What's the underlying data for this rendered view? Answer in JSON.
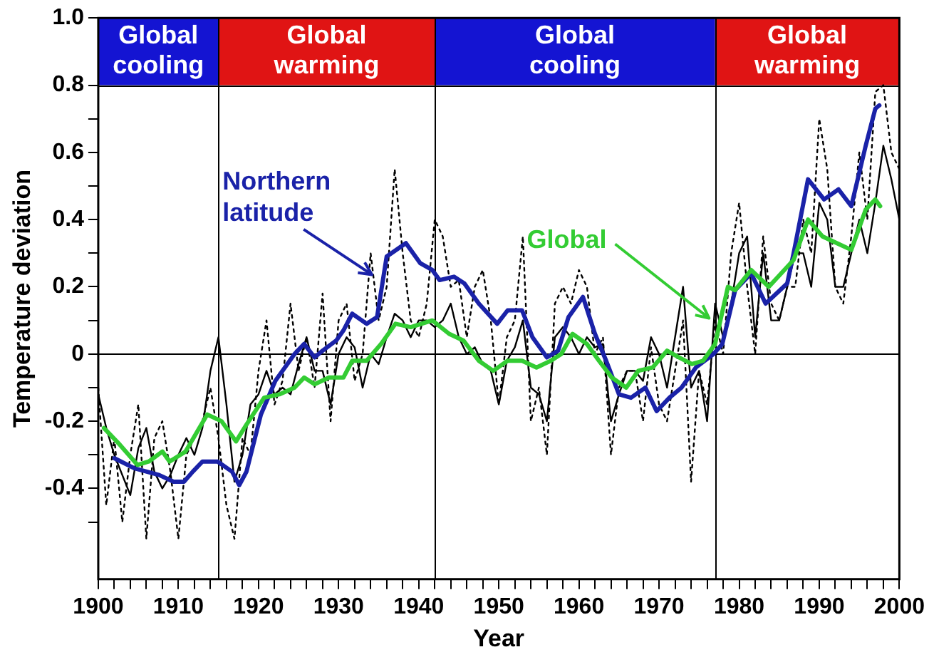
{
  "chart_data": {
    "type": "line",
    "xlabel": "Year",
    "ylabel": "Temperature deviation",
    "xlim": [
      1900,
      2000
    ],
    "ylim": [
      -0.67,
      1.0
    ],
    "xticks": [
      1900,
      {
        "value": 1902,
        "label": null
      },
      {
        "value": 1904,
        "label": null
      },
      {
        "value": 1906,
        "label": null
      },
      {
        "value": 1908,
        "label": null
      },
      1910,
      {
        "value": 1912,
        "label": null
      },
      {
        "value": 1914,
        "label": null
      },
      {
        "value": 1916,
        "label": null
      },
      {
        "value": 1918,
        "label": null
      },
      1920,
      {
        "value": 1922,
        "label": null
      },
      {
        "value": 1924,
        "label": null
      },
      {
        "value": 1926,
        "label": null
      },
      {
        "value": 1928,
        "label": null
      },
      1930,
      {
        "value": 1932,
        "label": null
      },
      {
        "value": 1934,
        "label": null
      },
      {
        "value": 1936,
        "label": null
      },
      {
        "value": 1938,
        "label": null
      },
      1940,
      {
        "value": 1942,
        "label": null
      },
      {
        "value": 1944,
        "label": null
      },
      {
        "value": 1946,
        "label": null
      },
      {
        "value": 1948,
        "label": null
      },
      1950,
      {
        "value": 1952,
        "label": null
      },
      {
        "value": 1954,
        "label": null
      },
      {
        "value": 1956,
        "label": null
      },
      {
        "value": 1958,
        "label": null
      },
      1960,
      {
        "value": 1962,
        "label": null
      },
      {
        "value": 1964,
        "label": null
      },
      {
        "value": 1966,
        "label": null
      },
      {
        "value": 1968,
        "label": null
      },
      1970,
      {
        "value": 1972,
        "label": null
      },
      {
        "value": 1974,
        "label": null
      },
      {
        "value": 1976,
        "label": null
      },
      {
        "value": 1978,
        "label": null
      },
      1980,
      {
        "value": 1982,
        "label": null
      },
      {
        "value": 1984,
        "label": null
      },
      {
        "value": 1986,
        "label": null
      },
      {
        "value": 1988,
        "label": null
      },
      1990,
      {
        "value": 1992,
        "label": null
      },
      {
        "value": 1994,
        "label": null
      },
      {
        "value": 1996,
        "label": null
      },
      {
        "value": 1998,
        "label": null
      },
      2000
    ],
    "yticks": [
      {
        "value": -0.5,
        "label": null
      },
      -0.4,
      {
        "value": -0.3,
        "label": null
      },
      -0.2,
      {
        "value": -0.1,
        "label": null
      },
      0,
      {
        "value": 0.1,
        "label": null
      },
      0.2,
      {
        "value": 0.3,
        "label": null
      },
      0.4,
      {
        "value": 0.5,
        "label": null
      },
      0.6,
      {
        "value": 0.7,
        "label": null
      },
      0.8,
      {
        "value": 1,
        "label": "1.0"
      }
    ],
    "grid": false,
    "legend": false,
    "marker": "none",
    "bands": [
      {
        "axis": "x",
        "from": 1900,
        "to": 1915,
        "label": "Global cooling",
        "color": "#1414d2"
      },
      {
        "axis": "x",
        "from": 1915,
        "to": 1942,
        "label": "Global warming",
        "color": "#e01414"
      },
      {
        "axis": "x",
        "from": 1942,
        "to": 1977,
        "label": "Global cooling",
        "color": "#1414d2"
      },
      {
        "axis": "x",
        "from": 1977,
        "to": 2000,
        "label": "Global warming",
        "color": "#e01414"
      }
    ],
    "ref_lines": [
      {
        "axis": "x",
        "value": 1915,
        "color": "#000000"
      },
      {
        "axis": "x",
        "value": 1942,
        "color": "#000000"
      },
      {
        "axis": "x",
        "value": 1977,
        "color": "#000000"
      },
      {
        "axis": "y",
        "value": 0,
        "color": "#000000"
      },
      {
        "axis": "y",
        "value": 0.8,
        "color": "#000000"
      }
    ],
    "series": [
      {
        "color": "#000000",
        "line_style": "dotted",
        "x": [
          1900,
          1901,
          1902,
          1903,
          1904,
          1905,
          1906,
          1907,
          1908,
          1909,
          1910,
          1911,
          1912,
          1913,
          1914,
          1915,
          1916,
          1917,
          1918,
          1919,
          1920,
          1921,
          1922,
          1923,
          1924,
          1925,
          1926,
          1927,
          1928,
          1929,
          1930,
          1931,
          1932,
          1933,
          1934,
          1935,
          1936,
          1937,
          1938,
          1939,
          1940,
          1941,
          1942,
          1943,
          1944,
          1945,
          1946,
          1947,
          1948,
          1949,
          1950,
          1951,
          1952,
          1953,
          1954,
          1955,
          1956,
          1957,
          1958,
          1959,
          1960,
          1961,
          1962,
          1963,
          1964,
          1965,
          1966,
          1967,
          1968,
          1969,
          1970,
          1971,
          1972,
          1973,
          1974,
          1975,
          1976,
          1977,
          1978,
          1979,
          1980,
          1981,
          1982,
          1983,
          1984,
          1985,
          1986,
          1987,
          1988,
          1989,
          1990,
          1991,
          1992,
          1993,
          1994,
          1995,
          1996,
          1997,
          1998,
          1999,
          2000
        ],
        "values": [
          -0.1,
          -0.45,
          -0.25,
          -0.5,
          -0.3,
          -0.15,
          -0.55,
          -0.25,
          -0.2,
          -0.35,
          -0.55,
          -0.3,
          -0.25,
          -0.2,
          -0.1,
          -0.25,
          -0.45,
          -0.55,
          -0.25,
          -0.3,
          -0.05,
          0.1,
          -0.15,
          -0.08,
          0.15,
          -0.05,
          0.05,
          -0.1,
          0.18,
          -0.2,
          0.1,
          0.15,
          -0.08,
          0.0,
          0.3,
          0.1,
          0.2,
          0.55,
          0.3,
          0.1,
          0.05,
          0.15,
          0.4,
          0.35,
          0.2,
          0.22,
          0.05,
          0.2,
          0.25,
          0.1,
          -0.15,
          0.05,
          0.1,
          0.35,
          -0.2,
          -0.1,
          -0.3,
          0.15,
          0.2,
          0.15,
          0.25,
          0.2,
          0.0,
          0.05,
          -0.3,
          -0.1,
          -0.05,
          -0.05,
          -0.2,
          0.02,
          -0.15,
          -0.2,
          -0.05,
          0.1,
          -0.38,
          -0.05,
          -0.15,
          0.1,
          0.0,
          0.3,
          0.45,
          0.2,
          0.0,
          0.35,
          0.15,
          0.1,
          0.2,
          0.2,
          0.4,
          0.3,
          0.7,
          0.55,
          0.2,
          0.15,
          0.35,
          0.6,
          0.4,
          0.78,
          0.8,
          0.6,
          0.55
        ]
      },
      {
        "color": "#000000",
        "line_style": "solid",
        "x": [
          1900,
          1901,
          1902,
          1903,
          1904,
          1905,
          1906,
          1907,
          1908,
          1909,
          1910,
          1911,
          1912,
          1913,
          1914,
          1915,
          1916,
          1917,
          1918,
          1919,
          1920,
          1921,
          1922,
          1923,
          1924,
          1925,
          1926,
          1927,
          1928,
          1929,
          1930,
          1931,
          1932,
          1933,
          1934,
          1935,
          1936,
          1937,
          1938,
          1939,
          1940,
          1941,
          1942,
          1943,
          1944,
          1945,
          1946,
          1947,
          1948,
          1949,
          1950,
          1951,
          1952,
          1953,
          1954,
          1955,
          1956,
          1957,
          1958,
          1959,
          1960,
          1961,
          1962,
          1963,
          1964,
          1965,
          1966,
          1967,
          1968,
          1969,
          1970,
          1971,
          1972,
          1973,
          1974,
          1975,
          1976,
          1977,
          1978,
          1979,
          1980,
          1981,
          1982,
          1983,
          1984,
          1985,
          1986,
          1987,
          1988,
          1989,
          1990,
          1991,
          1992,
          1993,
          1994,
          1995,
          1996,
          1997,
          1998,
          1999,
          2000
        ],
        "values": [
          -0.12,
          -0.22,
          -0.3,
          -0.36,
          -0.42,
          -0.28,
          -0.22,
          -0.35,
          -0.4,
          -0.36,
          -0.3,
          -0.25,
          -0.3,
          -0.22,
          -0.05,
          0.05,
          -0.15,
          -0.38,
          -0.3,
          -0.15,
          -0.12,
          -0.05,
          -0.12,
          -0.1,
          -0.12,
          -0.03,
          0.05,
          -0.05,
          -0.05,
          -0.15,
          0.0,
          0.05,
          0.02,
          -0.1,
          0.0,
          -0.03,
          0.05,
          0.12,
          0.1,
          0.05,
          0.1,
          0.1,
          0.08,
          0.1,
          0.15,
          0.05,
          0.0,
          0.02,
          -0.03,
          -0.05,
          -0.15,
          -0.02,
          0.02,
          0.1,
          -0.1,
          -0.12,
          -0.2,
          0.05,
          0.08,
          0.05,
          0.0,
          0.05,
          0.02,
          0.03,
          -0.2,
          -0.12,
          -0.05,
          -0.05,
          -0.08,
          0.05,
          0.0,
          -0.1,
          0.05,
          0.2,
          -0.1,
          -0.05,
          -0.2,
          0.15,
          0.05,
          0.15,
          0.3,
          0.35,
          0.05,
          0.3,
          0.1,
          0.1,
          0.2,
          0.3,
          0.3,
          0.2,
          0.45,
          0.4,
          0.2,
          0.2,
          0.3,
          0.4,
          0.3,
          0.45,
          0.62,
          0.52,
          0.4
        ]
      },
      {
        "name": "Northern latitude",
        "color": "#1a22a8",
        "line_style": "solid",
        "x": [
          1902,
          1904.5,
          1907.6,
          1909.4,
          1910.7,
          1911.8,
          1913,
          1914.9,
          1916.7,
          1917.6,
          1918.5,
          1920.3,
          1922.1,
          1924.5,
          1925.7,
          1927,
          1928,
          1929.7,
          1930.6,
          1931.7,
          1933.5,
          1934.8,
          1936,
          1938.4,
          1940.2,
          1941.7,
          1942.6,
          1944.4,
          1945.7,
          1947.5,
          1949.8,
          1951.1,
          1952.9,
          1954.2,
          1956,
          1957.4,
          1958.7,
          1960.5,
          1962,
          1963.4,
          1965,
          1966.5,
          1968.3,
          1969.7,
          1971.3,
          1972.8,
          1974.6,
          1976.8,
          1977.9,
          1979.5,
          1981.5,
          1983.3,
          1986,
          1986.8,
          1988.6,
          1990.6,
          1992.4,
          1994,
          1995.8,
          1997,
          1997.5
        ],
        "values": [
          -0.31,
          -0.34,
          -0.36,
          -0.38,
          -0.38,
          -0.35,
          -0.32,
          -0.32,
          -0.35,
          -0.39,
          -0.35,
          -0.18,
          -0.08,
          0.0,
          0.03,
          -0.01,
          0.01,
          0.04,
          0.07,
          0.12,
          0.09,
          0.11,
          0.29,
          0.33,
          0.27,
          0.25,
          0.22,
          0.23,
          0.21,
          0.15,
          0.09,
          0.13,
          0.13,
          0.05,
          -0.01,
          0.01,
          0.11,
          0.17,
          0.06,
          -0.02,
          -0.12,
          -0.13,
          -0.1,
          -0.17,
          -0.13,
          -0.1,
          -0.04,
          0.0,
          0.03,
          0.19,
          0.24,
          0.15,
          0.21,
          0.3,
          0.52,
          0.46,
          0.49,
          0.44,
          0.62,
          0.73,
          0.74
        ]
      },
      {
        "name": "Global",
        "color": "#33cc33",
        "line_style": "solid",
        "x": [
          1900.7,
          1902.7,
          1904.9,
          1906.3,
          1908,
          1908.9,
          1910.9,
          1913.6,
          1915.4,
          1917.2,
          1918.5,
          1920.7,
          1922.6,
          1924.5,
          1925.7,
          1927,
          1928.8,
          1930.6,
          1931.7,
          1933.5,
          1935.3,
          1937.1,
          1939,
          1941.7,
          1943.8,
          1945.6,
          1947.5,
          1949.3,
          1951.1,
          1952.9,
          1954.7,
          1956.5,
          1957.8,
          1959.2,
          1961,
          1962.5,
          1964.1,
          1965.9,
          1967.4,
          1969.2,
          1971,
          1972.5,
          1974.1,
          1975.5,
          1977,
          1978.6,
          1979.5,
          1981.5,
          1983.7,
          1986.8,
          1988.6,
          1990.4,
          1992.2,
          1994,
          1995.8,
          1997,
          1997.6
        ],
        "values": [
          -0.22,
          -0.27,
          -0.33,
          -0.32,
          -0.29,
          -0.32,
          -0.29,
          -0.18,
          -0.2,
          -0.26,
          -0.21,
          -0.13,
          -0.12,
          -0.1,
          -0.07,
          -0.09,
          -0.07,
          -0.07,
          -0.02,
          -0.02,
          0.03,
          0.09,
          0.08,
          0.1,
          0.06,
          0.04,
          -0.02,
          -0.05,
          -0.02,
          -0.02,
          -0.04,
          -0.02,
          0.0,
          0.06,
          0.03,
          -0.02,
          -0.07,
          -0.1,
          -0.05,
          -0.04,
          0.01,
          -0.01,
          -0.03,
          -0.02,
          0.03,
          0.2,
          0.19,
          0.25,
          0.2,
          0.28,
          0.4,
          0.35,
          0.33,
          0.31,
          0.43,
          0.46,
          0.44
        ]
      }
    ]
  }
}
